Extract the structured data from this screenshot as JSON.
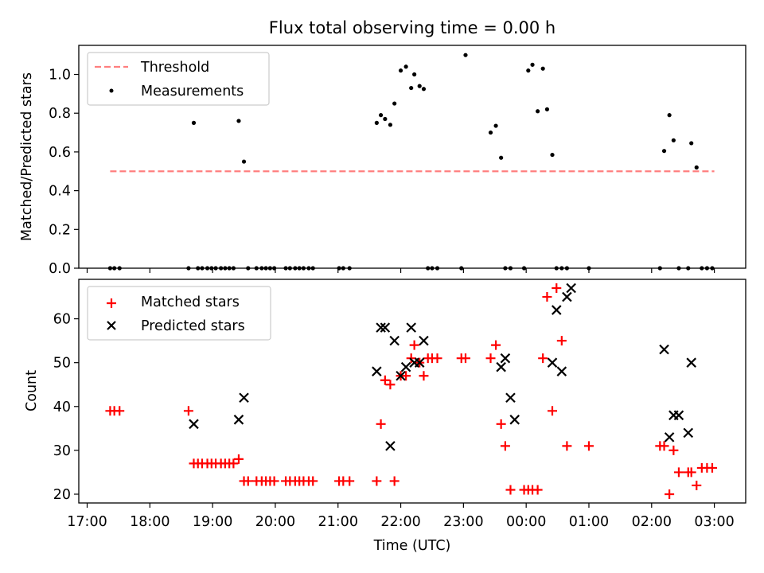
{
  "chart_data": {
    "type": "scatter",
    "title": "Flux total observing time = 0.00 h",
    "xlabel": "Time (UTC)",
    "x_ticks": [
      "17:00",
      "18:00",
      "19:00",
      "20:00",
      "21:00",
      "22:00",
      "23:00",
      "00:00",
      "01:00",
      "02:00",
      "03:00"
    ],
    "xlim": [
      "16:52",
      "03:30"
    ],
    "panels": [
      {
        "ylabel": "Matched/Predicted stars",
        "ylim": [
          0,
          1.15
        ],
        "y_ticks": [
          "0.0",
          "0.2",
          "0.4",
          "0.6",
          "0.8",
          "1.0"
        ],
        "legend_position": "upper-left",
        "legend": [
          "Threshold",
          "Measurements"
        ],
        "series": [
          {
            "name": "Threshold",
            "type": "line",
            "color": "#ff7f7f",
            "style": "dashed",
            "x": [
              "17:22",
              "03:00"
            ],
            "y": [
              0.5,
              0.5
            ]
          },
          {
            "name": "Measurements",
            "type": "scatter",
            "color": "#000000",
            "x": [
              "17:22",
              "17:26",
              "17:31",
              "18:37",
              "18:42",
              "18:46",
              "18:50",
              "18:55",
              "18:59",
              "19:03",
              "19:08",
              "19:12",
              "19:16",
              "19:20",
              "19:25",
              "19:30",
              "19:34",
              "19:42",
              "19:47",
              "19:51",
              "19:55",
              "19:59",
              "20:10",
              "20:14",
              "20:19",
              "20:23",
              "20:27",
              "20:32",
              "20:36",
              "21:01",
              "21:05",
              "21:11",
              "21:37",
              "21:41",
              "21:45",
              "21:50",
              "21:54",
              "22:00",
              "22:05",
              "22:10",
              "22:13",
              "22:18",
              "22:22",
              "22:26",
              "22:30",
              "22:35",
              "22:58",
              "23:02",
              "23:26",
              "23:31",
              "23:36",
              "23:40",
              "23:45",
              "23:58",
              "00:02",
              "00:06",
              "00:11",
              "00:16",
              "00:20",
              "00:25",
              "00:29",
              "00:34",
              "00:39",
              "01:00",
              "02:08",
              "02:12",
              "02:17",
              "02:21",
              "02:26",
              "02:35",
              "02:38",
              "02:43",
              "02:48",
              "02:53",
              "02:58"
            ],
            "y": [
              0,
              0,
              0,
              0,
              0.75,
              0,
              0,
              0,
              0,
              0,
              0,
              0,
              0,
              0,
              0.76,
              0.55,
              0,
              0,
              0,
              0,
              0,
              0,
              0,
              0,
              0,
              0,
              0,
              0,
              0,
              0,
              0,
              0,
              0.75,
              0.79,
              0.77,
              0.74,
              0.85,
              1.02,
              1.04,
              0.93,
              1.0,
              0.94,
              0.925,
              0,
              0,
              0,
              0,
              1.1,
              0.7,
              0.735,
              0.57,
              0,
              0,
              0,
              1.02,
              1.05,
              0.81,
              1.03,
              0.82,
              0.585,
              0,
              0,
              0,
              0,
              0,
              0.605,
              0.79,
              0.66,
              0,
              0,
              0.645,
              0.52,
              0,
              0,
              0
            ]
          }
        ]
      },
      {
        "ylabel": "Count",
        "ylim": [
          18,
          69
        ],
        "y_ticks": [
          "20",
          "30",
          "40",
          "50",
          "60"
        ],
        "legend_position": "upper-left",
        "legend": [
          "Matched stars",
          "Predicted stars"
        ],
        "series": [
          {
            "name": "Matched stars",
            "type": "scatter",
            "marker": "+",
            "color": "#ff0000",
            "x": [
              "17:22",
              "17:26",
              "17:31",
              "18:37",
              "18:42",
              "18:46",
              "18:50",
              "18:55",
              "18:59",
              "19:03",
              "19:08",
              "19:12",
              "19:16",
              "19:20",
              "19:25",
              "19:30",
              "19:34",
              "19:42",
              "19:47",
              "19:51",
              "19:55",
              "19:59",
              "20:10",
              "20:14",
              "20:19",
              "20:23",
              "20:27",
              "20:32",
              "20:36",
              "21:01",
              "21:05",
              "21:11",
              "21:37",
              "21:41",
              "21:45",
              "21:50",
              "21:54",
              "22:00",
              "22:05",
              "22:10",
              "22:13",
              "22:18",
              "22:22",
              "22:26",
              "22:30",
              "22:35",
              "22:58",
              "23:02",
              "23:26",
              "23:31",
              "23:36",
              "23:40",
              "23:45",
              "23:58",
              "00:02",
              "00:06",
              "00:11",
              "00:16",
              "00:20",
              "00:25",
              "00:29",
              "00:34",
              "00:39",
              "01:00",
              "02:08",
              "02:12",
              "02:17",
              "02:21",
              "02:26",
              "02:35",
              "02:38",
              "02:43",
              "02:48",
              "02:53",
              "02:58"
            ],
            "y": [
              39,
              39,
              39,
              39,
              27,
              27,
              27,
              27,
              27,
              27,
              27,
              27,
              27,
              27,
              28,
              23,
              23,
              23,
              23,
              23,
              23,
              23,
              23,
              23,
              23,
              23,
              23,
              23,
              23,
              23,
              23,
              23,
              23,
              36,
              46,
              45,
              23,
              47,
              47,
              51,
              54,
              50,
              47,
              51,
              51,
              51,
              51,
              51,
              51,
              54,
              36,
              31,
              21,
              21,
              21,
              21,
              21,
              51,
              65,
              39,
              67,
              55,
              31,
              31,
              31,
              31,
              20,
              30,
              25,
              25,
              25,
              22,
              26,
              26,
              26
            ]
          },
          {
            "name": "Predicted stars",
            "type": "scatter",
            "marker": "x",
            "color": "#000000",
            "x": [
              "18:42",
              "19:25",
              "19:30",
              "21:37",
              "21:41",
              "21:45",
              "21:50",
              "21:54",
              "22:00",
              "22:05",
              "22:10",
              "22:13",
              "22:18",
              "22:22",
              "23:36",
              "23:40",
              "23:45",
              "23:49",
              "00:25",
              "00:29",
              "00:34",
              "00:39",
              "00:43",
              "02:12",
              "02:17",
              "02:21",
              "02:26",
              "02:35",
              "02:38"
            ],
            "y": [
              36,
              37,
              42,
              48,
              58,
              58,
              31,
              55,
              47,
              49,
              58,
              50,
              50,
              55,
              49,
              51,
              42,
              37,
              50,
              62,
              48,
              65,
              67,
              53,
              33,
              38,
              38,
              34,
              50
            ]
          }
        ]
      }
    ]
  }
}
